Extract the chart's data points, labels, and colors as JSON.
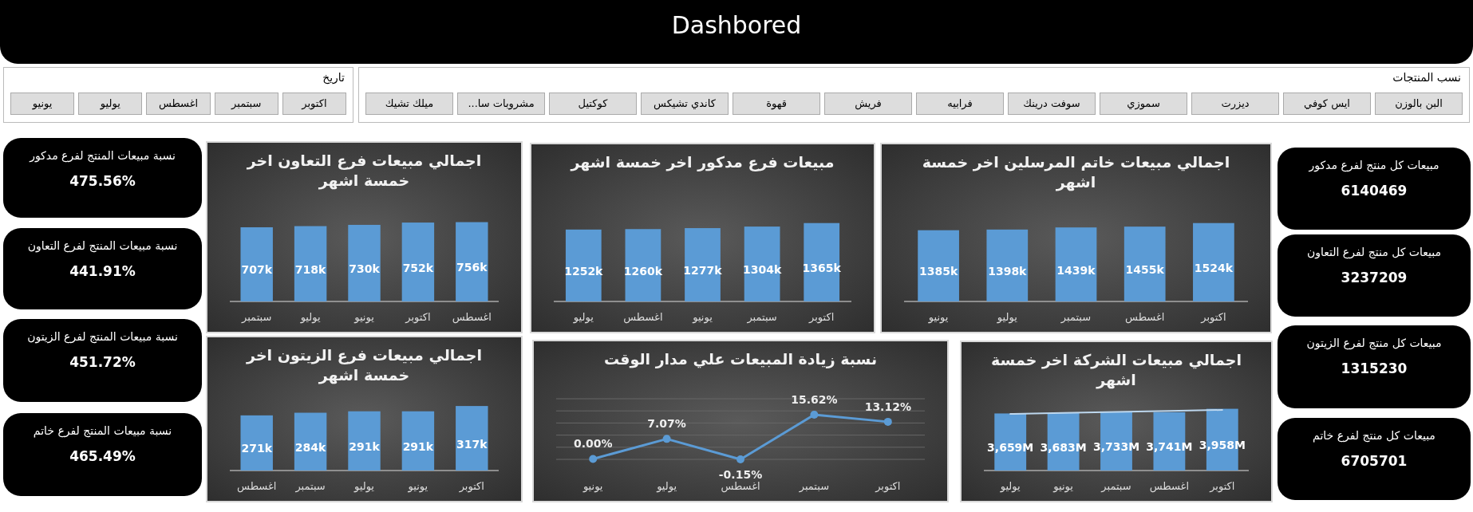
{
  "chart_data": [
    {
      "type": "other",
      "title": "Dashbored"
    },
    {
      "type": "other",
      "title": "تاريخ",
      "categories": [
        "اكتوبر",
        "سبتمبر",
        "اغسطس",
        "يوليو",
        "يونيو"
      ]
    },
    {
      "type": "other",
      "title": "نسب المنتجات",
      "categories": [
        "البن بالوزن",
        "ايس كوفي",
        "ديزرت",
        "سموزي",
        "سوفت درينك",
        "فرابيه",
        "فريش",
        "قهوة",
        "كاندي تشيكس",
        "كوكتيل",
        "مشروبات سا...",
        "ميلك تشيك"
      ]
    },
    {
      "type": "other",
      "title": "نسبة مبيعات المنتج لفرع مدكور",
      "annotations": [
        "475.56%"
      ]
    },
    {
      "type": "other",
      "title": "نسبة مبيعات المنتج لفرع التعاون",
      "annotations": [
        "441.91%"
      ]
    },
    {
      "type": "other",
      "title": "نسبة مبيعات المنتج لفرع الزيتون",
      "annotations": [
        "451.72%"
      ]
    },
    {
      "type": "other",
      "title": "نسبة مبيعات المنتج لفرع خاتم",
      "annotations": [
        "465.49%"
      ]
    },
    {
      "type": "bar",
      "title": "اجمالي مبيعات فرع التعاون اخر خمسة اشهر",
      "categories": [
        "سبتمبر",
        "يوليو",
        "يونيو",
        "اكتوبر",
        "اغسطس"
      ],
      "color": "#5b9bd5",
      "values": [
        707,
        718,
        730,
        752,
        756
      ],
      "value_labels": [
        "707k",
        "718k",
        "730k",
        "752k",
        "756k"
      ]
    },
    {
      "type": "bar",
      "title": "مبيعات فرع مدكور اخر خمسة اشهر",
      "categories": [
        "يوليو",
        "اغسطس",
        "يونيو",
        "سبتمبر",
        "اكتوبر"
      ],
      "color": "#5b9bd5",
      "values": [
        1252,
        1260,
        1277,
        1304,
        1365
      ],
      "value_labels": [
        "1252k",
        "1260k",
        "1277k",
        "1304k",
        "1365k"
      ]
    },
    {
      "type": "bar",
      "title": "اجمالي مبيعات خاتم المرسلين اخر خمسة اشهر",
      "categories": [
        "يونيو",
        "يوليو",
        "سبتمبر",
        "اغسطس",
        "اكتوبر"
      ],
      "color": "#5b9bd5",
      "values": [
        1385,
        1398,
        1439,
        1455,
        1524
      ],
      "value_labels": [
        "1385k",
        "1398k",
        "1439k",
        "1455k",
        "1524k"
      ]
    },
    {
      "type": "bar",
      "title": "اجمالي مبيعات فرع الزيتون اخر خمسة اشهر",
      "categories": [
        "اغسطس",
        "سبتمبر",
        "يوليو",
        "يونيو",
        "اكتوبر"
      ],
      "color": "#5b9bd5",
      "values": [
        271,
        284,
        291,
        291,
        317
      ],
      "value_labels": [
        "271k",
        "284k",
        "291k",
        "291k",
        "317k"
      ]
    },
    {
      "type": "line",
      "title": "نسبة زيادة المبيعات علي مدار الوقت",
      "categories": [
        "يونيو",
        "يوليو",
        "اغسطس",
        "سبتمبر",
        "اكتوبر"
      ],
      "color": "#5b9bd5",
      "marker": "circle",
      "grid": true,
      "values": [
        0,
        7.07,
        -0.15,
        15.62,
        13.12
      ],
      "value_labels": [
        "0.00%",
        "7.07%",
        "-0.15%",
        "15.62%",
        "13.12%"
      ]
    },
    {
      "type": "bar",
      "title": "اجمالي مبيعات الشركة اخر خمسة اشهر",
      "categories": [
        "يوليو",
        "يونيو",
        "سبتمبر",
        "اغسطس",
        "اكتوبر"
      ],
      "series": [
        {
          "type": "bar",
          "color": "#5b9bd5",
          "values": [
            3659,
            3683,
            3733,
            3741,
            3958
          ],
          "value_labels": [
            "3,659M",
            "3,683M",
            "3,733M",
            "3,741M",
            "3,958M"
          ]
        },
        {
          "type": "line",
          "color": "#bdd7ee",
          "values": [
            3624,
            3689,
            3755,
            3821,
            3886
          ]
        }
      ]
    },
    {
      "type": "other",
      "title": "مبيعات كل منتج لفرع مدكور",
      "annotations": [
        "6140469"
      ]
    },
    {
      "type": "other",
      "title": "مبيعات كل منتج لفرع التعاون",
      "annotations": [
        "3237209"
      ]
    },
    {
      "type": "other",
      "title": "مبيعات كل منتج لفرع الزيتون",
      "annotations": [
        "1315230"
      ]
    },
    {
      "type": "other",
      "title": "مبيعات كل منتج لفرع خاتم",
      "annotations": [
        "6705701"
      ]
    }
  ]
}
